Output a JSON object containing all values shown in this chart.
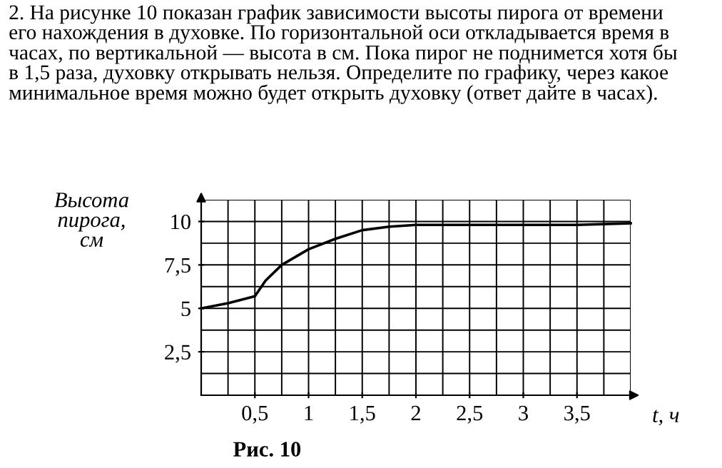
{
  "chart_data": {
    "type": "line",
    "title": "2. На рисунке 10 показан график зависимости высоты пирога от времени\nего нахождения в духовке. По горизонтальной оси откладывается время в\nчасах, по вертикальной — высота в см. Пока пирог не поднимется хотя бы\nв 1,5 раза, духовку открывать нельзя. Определите по графику, через какое\nминимальное время можно будет открыть духовку (ответ дайте в часах).",
    "xlabel": "t, ч",
    "ylabel": "Высота\nпирога,\nсм",
    "annotations": [
      "Рис. 10"
    ],
    "x": [
      0,
      0.25,
      0.5,
      0.6,
      0.75,
      1,
      1.25,
      1.5,
      1.75,
      2,
      2.5,
      3,
      3.5,
      4
    ],
    "series": [
      {
        "color": "#000000",
        "values": [
          5,
          5.3,
          5.7,
          6.6,
          7.5,
          8.4,
          9.0,
          9.5,
          9.7,
          9.8,
          9.8,
          9.8,
          9.8,
          9.9
        ]
      }
    ],
    "xlim": [
      0,
      4
    ],
    "ylim": [
      0,
      11.25
    ],
    "xticks": [
      {
        "value": 0.25,
        "label": null
      },
      {
        "value": 0.5,
        "label": "0,5"
      },
      {
        "value": 0.75,
        "label": null
      },
      {
        "value": 1,
        "label": "1"
      },
      {
        "value": 1.25,
        "label": null
      },
      {
        "value": 1.5,
        "label": "1,5"
      },
      {
        "value": 1.75,
        "label": null
      },
      {
        "value": 2,
        "label": "2"
      },
      {
        "value": 2.25,
        "label": null
      },
      {
        "value": 2.5,
        "label": "2,5"
      },
      {
        "value": 2.75,
        "label": null
      },
      {
        "value": 3,
        "label": "3"
      },
      {
        "value": 3.25,
        "label": null
      },
      {
        "value": 3.5,
        "label": "3,5"
      },
      {
        "value": 3.75,
        "label": null
      },
      {
        "value": 4,
        "label": null
      }
    ],
    "yticks": [
      {
        "value": 1.25,
        "label": null
      },
      {
        "value": 2.5,
        "label": "2,5"
      },
      {
        "value": 3.75,
        "label": null
      },
      {
        "value": 5,
        "label": "5"
      },
      {
        "value": 6.25,
        "label": null
      },
      {
        "value": 7.5,
        "label": "7,5"
      },
      {
        "value": 8.75,
        "label": null
      },
      {
        "value": 10,
        "label": "10"
      },
      {
        "value": 11.25,
        "label": null
      }
    ],
    "grid": true,
    "marker": "none",
    "line_style": "solid"
  }
}
